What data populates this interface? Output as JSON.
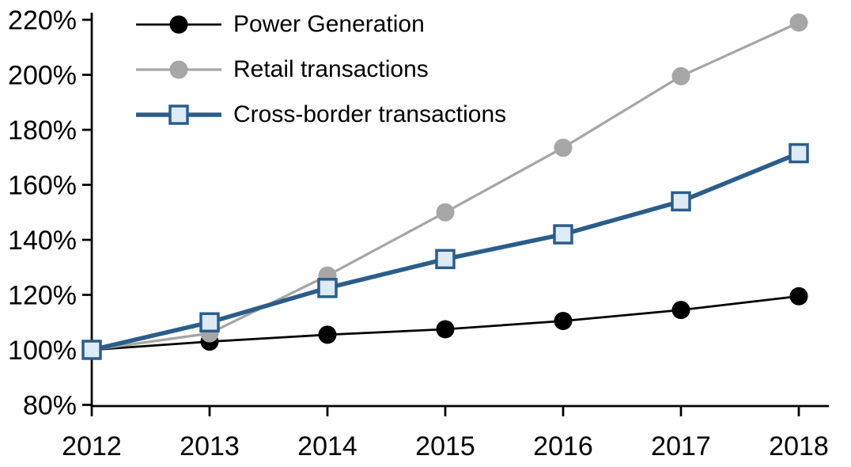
{
  "chart_data": {
    "type": "line",
    "title": "",
    "xlabel": "",
    "ylabel": "",
    "x": [
      "2012",
      "2013",
      "2014",
      "2015",
      "2016",
      "2017",
      "2018"
    ],
    "y_axis": {
      "min": 80,
      "max": 220,
      "step": 20,
      "tick_labels": [
        "80%",
        "100%",
        "120%",
        "140%",
        "160%",
        "180%",
        "200%",
        "220%"
      ],
      "format": "percent"
    },
    "grid": false,
    "legend_position": "top-left",
    "series": [
      {
        "name": "Power Generation",
        "color": "#000000",
        "marker": "circle",
        "marker_fill": "#000000",
        "line_width": 2.75,
        "values": [
          100,
          103,
          105.5,
          107.5,
          110.5,
          114.5,
          119.5
        ]
      },
      {
        "name": "Retail transactions",
        "color": "#A6A6A6",
        "marker": "circle",
        "marker_fill": "#A6A6A6",
        "line_width": 3.25,
        "values": [
          100,
          106,
          127,
          150,
          173.5,
          199.5,
          219
        ]
      },
      {
        "name": "Cross-border transactions",
        "color": "#2B5D8B",
        "marker": "square",
        "marker_fill": "#DEEAF6",
        "line_width": 5.5,
        "values": [
          100,
          110,
          122.5,
          133,
          142,
          154,
          171.5
        ]
      }
    ]
  }
}
